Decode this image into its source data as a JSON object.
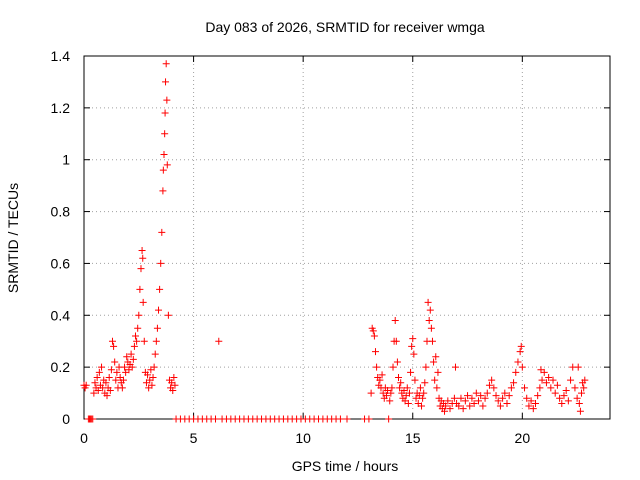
{
  "chart_data": {
    "type": "scatter",
    "title": "Day 083 of 2026, SRMTID for receiver wmga",
    "xlabel": "GPS time / hours",
    "ylabel": "SRMTID / TECUs",
    "xlim": [
      0,
      24
    ],
    "ylim": [
      0,
      1.4
    ],
    "grid": true,
    "marker": "+",
    "color": "#ff0000",
    "x_ticks": [
      {
        "value": 0,
        "label": "0"
      },
      {
        "value": 5,
        "label": "5"
      },
      {
        "value": 10,
        "label": "10"
      },
      {
        "value": 15,
        "label": "15"
      },
      {
        "value": 20,
        "label": "20"
      }
    ],
    "y_ticks": [
      {
        "value": 0,
        "label": "0"
      },
      {
        "value": 0.2,
        "label": "0.2"
      },
      {
        "value": 0.4,
        "label": "0.4"
      },
      {
        "value": 0.6,
        "label": "0.6"
      },
      {
        "value": 0.8,
        "label": "0.8"
      },
      {
        "value": 1.0,
        "label": "1"
      },
      {
        "value": 1.2,
        "label": "1.2"
      },
      {
        "value": 1.4,
        "label": "1.4"
      }
    ],
    "series": [
      {
        "name": "SRMTID",
        "points": [
          [
            0.0,
            0.13
          ],
          [
            0.05,
            0.12
          ],
          [
            0.1,
            0.13
          ],
          [
            0.2,
            0.0
          ],
          [
            0.25,
            0.0
          ],
          [
            0.3,
            0.0
          ],
          [
            0.35,
            0.0
          ],
          [
            0.4,
            0.0
          ],
          [
            0.45,
            0.1
          ],
          [
            0.5,
            0.14
          ],
          [
            0.55,
            0.12
          ],
          [
            0.6,
            0.16
          ],
          [
            0.65,
            0.11
          ],
          [
            0.7,
            0.18
          ],
          [
            0.75,
            0.13
          ],
          [
            0.8,
            0.2
          ],
          [
            0.85,
            0.12
          ],
          [
            0.9,
            0.15
          ],
          [
            0.95,
            0.1
          ],
          [
            1.0,
            0.14
          ],
          [
            1.05,
            0.09
          ],
          [
            1.1,
            0.12
          ],
          [
            1.15,
            0.16
          ],
          [
            1.2,
            0.11
          ],
          [
            1.25,
            0.19
          ],
          [
            1.3,
            0.3
          ],
          [
            1.35,
            0.28
          ],
          [
            1.4,
            0.22
          ],
          [
            1.45,
            0.15
          ],
          [
            1.5,
            0.18
          ],
          [
            1.55,
            0.12
          ],
          [
            1.6,
            0.2
          ],
          [
            1.65,
            0.16
          ],
          [
            1.7,
            0.14
          ],
          [
            1.75,
            0.12
          ],
          [
            1.8,
            0.15
          ],
          [
            1.85,
            0.2
          ],
          [
            1.9,
            0.18
          ],
          [
            1.95,
            0.24
          ],
          [
            2.0,
            0.22
          ],
          [
            2.05,
            0.19
          ],
          [
            2.1,
            0.21
          ],
          [
            2.15,
            0.25
          ],
          [
            2.2,
            0.2
          ],
          [
            2.25,
            0.23
          ],
          [
            2.3,
            0.28
          ],
          [
            2.35,
            0.32
          ],
          [
            2.4,
            0.3
          ],
          [
            2.45,
            0.35
          ],
          [
            2.5,
            0.4
          ],
          [
            2.55,
            0.5
          ],
          [
            2.6,
            0.58
          ],
          [
            2.65,
            0.65
          ],
          [
            2.68,
            0.62
          ],
          [
            2.7,
            0.45
          ],
          [
            2.75,
            0.3
          ],
          [
            2.8,
            0.18
          ],
          [
            2.85,
            0.14
          ],
          [
            2.9,
            0.17
          ],
          [
            2.95,
            0.12
          ],
          [
            3.0,
            0.15
          ],
          [
            3.05,
            0.19
          ],
          [
            3.1,
            0.13
          ],
          [
            3.15,
            0.16
          ],
          [
            3.2,
            0.2
          ],
          [
            3.25,
            0.25
          ],
          [
            3.3,
            0.3
          ],
          [
            3.35,
            0.35
          ],
          [
            3.4,
            0.42
          ],
          [
            3.45,
            0.5
          ],
          [
            3.5,
            0.6
          ],
          [
            3.55,
            0.72
          ],
          [
            3.6,
            0.88
          ],
          [
            3.62,
            0.96
          ],
          [
            3.65,
            1.02
          ],
          [
            3.68,
            1.1
          ],
          [
            3.7,
            1.18
          ],
          [
            3.72,
            1.3
          ],
          [
            3.75,
            1.37
          ],
          [
            3.78,
            1.23
          ],
          [
            3.8,
            0.98
          ],
          [
            3.85,
            0.4
          ],
          [
            3.9,
            0.15
          ],
          [
            3.95,
            0.12
          ],
          [
            4.0,
            0.14
          ],
          [
            4.05,
            0.11
          ],
          [
            4.1,
            0.16
          ],
          [
            4.15,
            0.13
          ],
          [
            4.2,
            0.0
          ],
          [
            4.4,
            0.0
          ],
          [
            4.6,
            0.0
          ],
          [
            4.8,
            0.0
          ],
          [
            5.0,
            0.0
          ],
          [
            5.2,
            0.0
          ],
          [
            5.4,
            0.0
          ],
          [
            5.6,
            0.0
          ],
          [
            5.8,
            0.0
          ],
          [
            6.0,
            0.0
          ],
          [
            6.15,
            0.3
          ],
          [
            6.3,
            0.0
          ],
          [
            6.5,
            0.0
          ],
          [
            6.7,
            0.0
          ],
          [
            6.9,
            0.0
          ],
          [
            7.1,
            0.0
          ],
          [
            7.3,
            0.0
          ],
          [
            7.5,
            0.0
          ],
          [
            7.7,
            0.0
          ],
          [
            7.9,
            0.0
          ],
          [
            8.1,
            0.0
          ],
          [
            8.3,
            0.0
          ],
          [
            8.5,
            0.0
          ],
          [
            8.7,
            0.0
          ],
          [
            8.9,
            0.0
          ],
          [
            9.1,
            0.0
          ],
          [
            9.3,
            0.0
          ],
          [
            9.5,
            0.0
          ],
          [
            9.7,
            0.0
          ],
          [
            9.9,
            0.0
          ],
          [
            10.1,
            0.0
          ],
          [
            10.3,
            0.0
          ],
          [
            10.5,
            0.0
          ],
          [
            10.7,
            0.0
          ],
          [
            10.9,
            0.0
          ],
          [
            11.1,
            0.0
          ],
          [
            11.3,
            0.0
          ],
          [
            11.5,
            0.0
          ],
          [
            11.7,
            0.0
          ],
          [
            12.0,
            0.0
          ],
          [
            12.8,
            0.0
          ],
          [
            13.0,
            0.0
          ],
          [
            13.1,
            0.1
          ],
          [
            13.15,
            0.35
          ],
          [
            13.2,
            0.34
          ],
          [
            13.25,
            0.32
          ],
          [
            13.3,
            0.26
          ],
          [
            13.35,
            0.2
          ],
          [
            13.4,
            0.16
          ],
          [
            13.45,
            0.13
          ],
          [
            13.5,
            0.15
          ],
          [
            13.55,
            0.12
          ],
          [
            13.6,
            0.17
          ],
          [
            13.65,
            0.1
          ],
          [
            13.7,
            0.08
          ],
          [
            13.75,
            0.12
          ],
          [
            13.8,
            0.09
          ],
          [
            13.85,
            0.11
          ],
          [
            13.9,
            0.0
          ],
          [
            13.95,
            0.07
          ],
          [
            14.0,
            0.1
          ],
          [
            14.05,
            0.12
          ],
          [
            14.1,
            0.2
          ],
          [
            14.15,
            0.3
          ],
          [
            14.2,
            0.38
          ],
          [
            14.25,
            0.3
          ],
          [
            14.3,
            0.22
          ],
          [
            14.35,
            0.16
          ],
          [
            14.4,
            0.12
          ],
          [
            14.45,
            0.14
          ],
          [
            14.5,
            0.1
          ],
          [
            14.55,
            0.08
          ],
          [
            14.6,
            0.11
          ],
          [
            14.65,
            0.07
          ],
          [
            14.7,
            0.09
          ],
          [
            14.75,
            0.12
          ],
          [
            14.8,
            0.06
          ],
          [
            14.85,
            0.1
          ],
          [
            14.9,
            0.18
          ],
          [
            14.95,
            0.28
          ],
          [
            15.0,
            0.31
          ],
          [
            15.05,
            0.25
          ],
          [
            15.1,
            0.15
          ],
          [
            15.15,
            0.08
          ],
          [
            15.2,
            0.1
          ],
          [
            15.25,
            0.06
          ],
          [
            15.3,
            0.09
          ],
          [
            15.35,
            0.12
          ],
          [
            15.4,
            0.05
          ],
          [
            15.45,
            0.08
          ],
          [
            15.5,
            0.1
          ],
          [
            15.55,
            0.14
          ],
          [
            15.6,
            0.2
          ],
          [
            15.65,
            0.3
          ],
          [
            15.7,
            0.45
          ],
          [
            15.75,
            0.38
          ],
          [
            15.8,
            0.42
          ],
          [
            15.85,
            0.35
          ],
          [
            15.9,
            0.3
          ],
          [
            15.95,
            0.22
          ],
          [
            16.0,
            0.15
          ],
          [
            16.05,
            0.24
          ],
          [
            16.1,
            0.12
          ],
          [
            16.15,
            0.18
          ],
          [
            16.2,
            0.08
          ],
          [
            16.25,
            0.05
          ],
          [
            16.3,
            0.07
          ],
          [
            16.35,
            0.04
          ],
          [
            16.4,
            0.06
          ],
          [
            16.45,
            0.03
          ],
          [
            16.5,
            0.05
          ],
          [
            16.6,
            0.07
          ],
          [
            16.7,
            0.04
          ],
          [
            16.8,
            0.06
          ],
          [
            16.9,
            0.08
          ],
          [
            16.95,
            0.2
          ],
          [
            17.0,
            0.06
          ],
          [
            17.1,
            0.05
          ],
          [
            17.2,
            0.08
          ],
          [
            17.3,
            0.04
          ],
          [
            17.4,
            0.07
          ],
          [
            17.5,
            0.09
          ],
          [
            17.6,
            0.05
          ],
          [
            17.7,
            0.08
          ],
          [
            17.8,
            0.06
          ],
          [
            17.9,
            0.1
          ],
          [
            18.0,
            0.07
          ],
          [
            18.1,
            0.09
          ],
          [
            18.2,
            0.05
          ],
          [
            18.3,
            0.08
          ],
          [
            18.4,
            0.1
          ],
          [
            18.5,
            0.13
          ],
          [
            18.6,
            0.15
          ],
          [
            18.7,
            0.12
          ],
          [
            18.8,
            0.09
          ],
          [
            18.9,
            0.07
          ],
          [
            19.0,
            0.05
          ],
          [
            19.1,
            0.08
          ],
          [
            19.2,
            0.1
          ],
          [
            19.3,
            0.06
          ],
          [
            19.4,
            0.09
          ],
          [
            19.5,
            0.12
          ],
          [
            19.6,
            0.14
          ],
          [
            19.7,
            0.18
          ],
          [
            19.8,
            0.22
          ],
          [
            19.9,
            0.26
          ],
          [
            19.95,
            0.28
          ],
          [
            20.0,
            0.2
          ],
          [
            20.1,
            0.12
          ],
          [
            20.2,
            0.08
          ],
          [
            20.3,
            0.05
          ],
          [
            20.4,
            0.07
          ],
          [
            20.5,
            0.04
          ],
          [
            20.6,
            0.06
          ],
          [
            20.7,
            0.09
          ],
          [
            20.8,
            0.12
          ],
          [
            20.85,
            0.19
          ],
          [
            20.9,
            0.15
          ],
          [
            21.0,
            0.18
          ],
          [
            21.1,
            0.14
          ],
          [
            21.2,
            0.16
          ],
          [
            21.3,
            0.12
          ],
          [
            21.4,
            0.15
          ],
          [
            21.5,
            0.1
          ],
          [
            21.6,
            0.13
          ],
          [
            21.7,
            0.08
          ],
          [
            21.8,
            0.06
          ],
          [
            21.9,
            0.09
          ],
          [
            22.0,
            0.11
          ],
          [
            22.1,
            0.07
          ],
          [
            22.2,
            0.15
          ],
          [
            22.3,
            0.2
          ],
          [
            22.4,
            0.12
          ],
          [
            22.5,
            0.08
          ],
          [
            22.55,
            0.2
          ],
          [
            22.6,
            0.06
          ],
          [
            22.65,
            0.03
          ],
          [
            22.7,
            0.1
          ],
          [
            22.75,
            0.14
          ],
          [
            22.8,
            0.12
          ],
          [
            22.85,
            0.15
          ]
        ]
      }
    ]
  }
}
